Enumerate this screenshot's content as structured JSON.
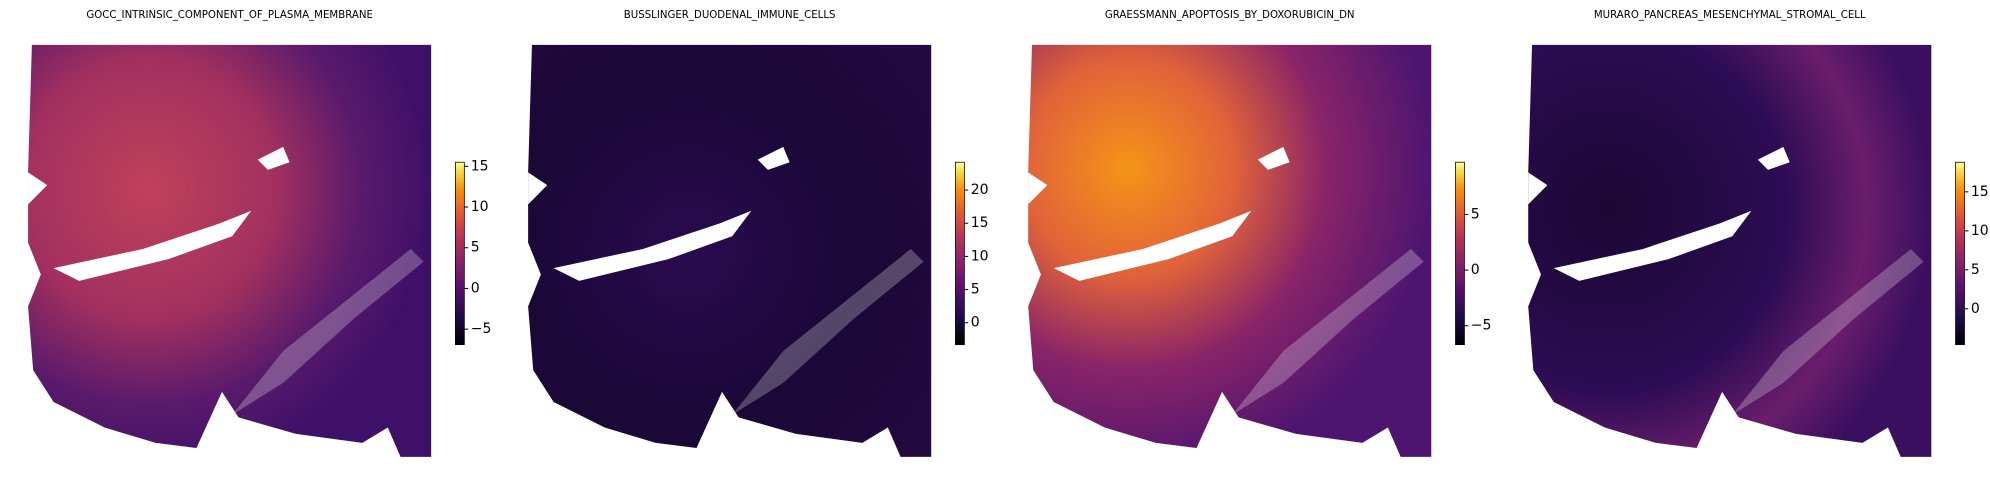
{
  "chart_data": [
    {
      "type": "heatmap",
      "title": "GOCC_INTRINSIC_COMPONENT_OF_PLASMA_MEMBRANE",
      "colormap": "inferno",
      "clim": [
        -6.9,
        15.5
      ],
      "cticks": [
        {
          "value": -5,
          "label": "−5"
        },
        0,
        5,
        10,
        15
      ]
    },
    {
      "type": "heatmap",
      "title": "BUSSLINGER_DUODENAL_IMMUNE_CELLS",
      "colormap": "inferno",
      "clim": [
        -3.3,
        24.2
      ],
      "cticks": [
        0,
        5,
        10,
        15,
        20
      ]
    },
    {
      "type": "heatmap",
      "title": "GRAESSMANN_APOPTOSIS_BY_DOXORUBICIN_DN",
      "colormap": "inferno",
      "clim": [
        -6.7,
        9.7
      ],
      "cticks": [
        {
          "value": -5,
          "label": "−5"
        },
        0,
        5
      ]
    },
    {
      "type": "heatmap",
      "title": "MURARO_PANCREAS_MESENCHYMAL_STROMAL_CELL",
      "colormap": "inferno",
      "clim": [
        -4.6,
        18.8
      ],
      "cticks": [
        0,
        5,
        10,
        15
      ]
    }
  ]
}
